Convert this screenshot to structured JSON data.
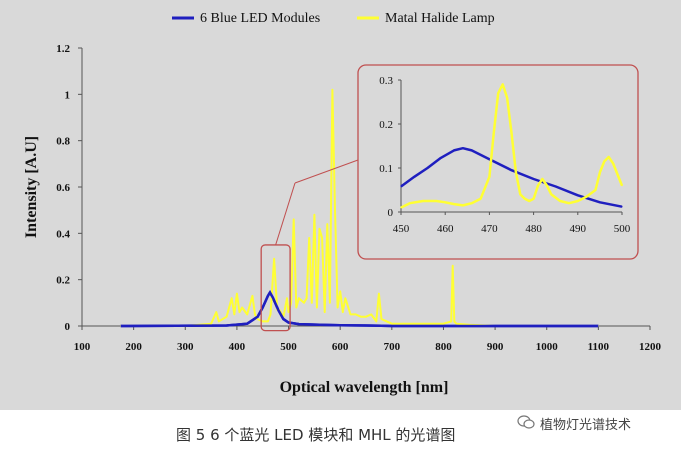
{
  "chart_data": [
    {
      "type": "line",
      "title": "",
      "xlabel": "Optical wavelength [nm]",
      "ylabel": "Intensity [A.U]",
      "xlim": [
        100,
        1200
      ],
      "ylim": [
        0,
        1.2
      ],
      "x_ticks": [
        "100",
        "200",
        "300",
        "400",
        "500",
        "600",
        "700",
        "800",
        "900",
        "1000",
        "1100",
        "1200"
      ],
      "y_ticks": [
        "0",
        "0.2",
        "0.4",
        "0.6",
        "0.8",
        "1",
        "1.2"
      ],
      "legend_position": "top",
      "grid": false,
      "series": [
        {
          "name": "6 Blue LED Modules",
          "color": "#1f1fbf",
          "x": [
            175,
            380,
            420,
            440,
            450,
            460,
            464,
            470,
            480,
            490,
            500,
            520,
            560,
            600,
            650,
            700,
            1100
          ],
          "y": [
            0.0,
            0.002,
            0.01,
            0.04,
            0.08,
            0.13,
            0.145,
            0.12,
            0.07,
            0.03,
            0.015,
            0.008,
            0.005,
            0.003,
            0.002,
            0.0,
            0.0
          ]
        },
        {
          "name": "Matal Halide Lamp",
          "color": "#ffff33",
          "x": [
            175,
            300,
            350,
            360,
            365,
            380,
            390,
            395,
            400,
            405,
            410,
            420,
            430,
            435,
            440,
            450,
            460,
            465,
            472,
            478,
            482,
            490,
            497,
            500,
            505,
            510,
            515,
            520,
            530,
            535,
            540,
            545,
            550,
            555,
            560,
            565,
            570,
            575,
            580,
            585,
            590,
            595,
            600,
            605,
            610,
            620,
            630,
            640,
            650,
            660,
            670,
            675,
            680,
            700,
            750,
            800,
            815,
            818,
            821,
            825,
            850,
            900,
            1000,
            1100
          ],
          "y": [
            0.0,
            0.0,
            0.01,
            0.06,
            0.02,
            0.04,
            0.12,
            0.05,
            0.14,
            0.06,
            0.08,
            0.05,
            0.13,
            0.05,
            0.03,
            0.02,
            0.02,
            0.05,
            0.29,
            0.07,
            0.07,
            0.04,
            0.12,
            0.06,
            0.1,
            0.46,
            0.08,
            0.12,
            0.1,
            0.12,
            0.38,
            0.1,
            0.48,
            0.08,
            0.42,
            0.38,
            0.06,
            0.44,
            0.1,
            1.02,
            0.5,
            0.08,
            0.15,
            0.06,
            0.12,
            0.05,
            0.05,
            0.04,
            0.04,
            0.05,
            0.02,
            0.14,
            0.03,
            0.01,
            0.01,
            0.01,
            0.02,
            0.26,
            0.02,
            0.01,
            0.005,
            0.0,
            0.0,
            0.0
          ]
        }
      ]
    },
    {
      "type": "line",
      "title": "",
      "xlim": [
        450,
        500
      ],
      "ylim": [
        0,
        0.3
      ],
      "x_ticks": [
        "450",
        "460",
        "470",
        "480",
        "490",
        "500"
      ],
      "y_ticks": [
        "0",
        "0.1",
        "0.2",
        "0.3"
      ],
      "series": [
        {
          "name": "6 Blue LED Modules",
          "color": "#1f1fbf",
          "x": [
            450,
            453,
            456,
            459,
            462,
            464,
            466,
            470,
            475,
            480,
            485,
            490,
            495,
            500
          ],
          "y": [
            0.058,
            0.08,
            0.1,
            0.123,
            0.14,
            0.145,
            0.14,
            0.12,
            0.095,
            0.075,
            0.058,
            0.038,
            0.022,
            0.012
          ]
        },
        {
          "name": "Matal Halide Lamp",
          "color": "#ffff33",
          "x": [
            450,
            452,
            455,
            458,
            460,
            462,
            464,
            466,
            468,
            470,
            471,
            472,
            473,
            474,
            475,
            476,
            477,
            478,
            479,
            480,
            481,
            482,
            483,
            484,
            486,
            488,
            490,
            492,
            494,
            495,
            496,
            497,
            498,
            499,
            500
          ],
          "y": [
            0.01,
            0.02,
            0.025,
            0.025,
            0.022,
            0.018,
            0.015,
            0.02,
            0.03,
            0.08,
            0.18,
            0.27,
            0.29,
            0.26,
            0.18,
            0.09,
            0.04,
            0.03,
            0.025,
            0.03,
            0.06,
            0.075,
            0.06,
            0.04,
            0.025,
            0.02,
            0.025,
            0.035,
            0.05,
            0.09,
            0.115,
            0.125,
            0.11,
            0.085,
            0.06
          ]
        }
      ]
    }
  ],
  "caption": "图 5    6 个蓝光 LED 模块和 MHL 的光谱图",
  "watermark": "植物灯光谱技术",
  "colors": {
    "panel": "#d9d9d9",
    "inset_border": "#c05050",
    "blue": "#1f1fbf",
    "yellow": "#ffff33"
  }
}
